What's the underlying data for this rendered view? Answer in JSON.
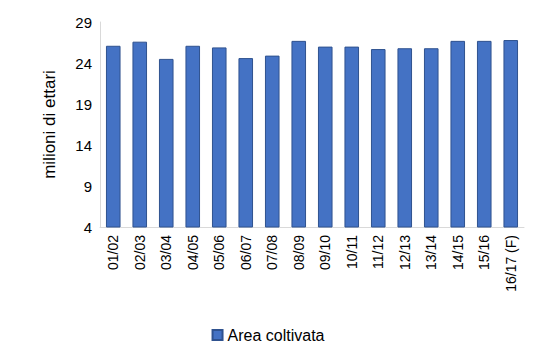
{
  "chart_data": {
    "type": "bar",
    "y_label": "milioni di ettari",
    "categories": [
      "01/02",
      "02/03",
      "03/04",
      "04/05",
      "05/06",
      "06/07",
      "07/08",
      "08/09",
      "09/10",
      "10/11",
      "11/12",
      "12/13",
      "13/14",
      "14/15",
      "15/16",
      "16/17 (F)"
    ],
    "series": [
      {
        "name": "Area coltivata",
        "color": "#4472c4",
        "values": [
          26.1,
          26.6,
          24.5,
          26.1,
          25.9,
          24.6,
          24.9,
          26.7,
          26.0,
          26.0,
          25.7,
          25.8,
          25.8,
          26.7,
          26.7,
          26.8
        ]
      }
    ],
    "ylim": [
      4,
      29
    ],
    "yticks": [
      4,
      9,
      14,
      19,
      24,
      29
    ],
    "grid": false,
    "legend": "bottom"
  }
}
